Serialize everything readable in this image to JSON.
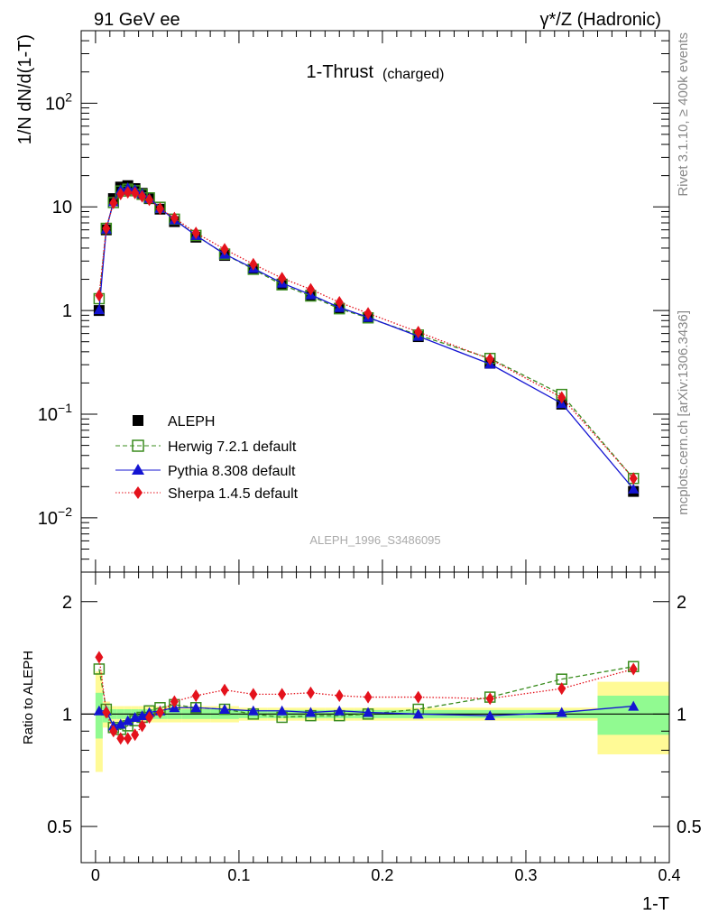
{
  "header": {
    "left_label": "91 GeV ee",
    "right_label": "γ*/Z (Hadronic)"
  },
  "side_labels": {
    "top": "Rivet 3.1.10, ≥ 400k events",
    "bottom": "mcplots.cern.ch [arXiv:1306.3436]"
  },
  "chart_data": [
    {
      "type": "line",
      "title": "1-Thrust",
      "title_suffix": "(charged)",
      "watermark": "ALEPH_1996_S3486095",
      "ylabel": "1/N dN/d(1-T)",
      "yscale": "log",
      "ylim": [
        0.003,
        500
      ],
      "xlim": [
        -0.01,
        0.4
      ],
      "ytick_labels": {
        "1e2": [
          "10",
          "2"
        ],
        "1e1": [
          "10",
          ""
        ],
        "1e0": [
          "1",
          ""
        ],
        "1e-1": [
          "10",
          "−1"
        ],
        "1e-2": [
          "10",
          "−2"
        ]
      },
      "x": [
        0.0025,
        0.0075,
        0.0125,
        0.0175,
        0.0225,
        0.0275,
        0.0325,
        0.0375,
        0.045,
        0.055,
        0.07,
        0.09,
        0.11,
        0.13,
        0.15,
        0.17,
        0.19,
        0.225,
        0.275,
        0.325,
        0.375
      ],
      "legend": [
        "ALEPH",
        "Herwig 7.2.1 default",
        "Pythia 8.308 default",
        "Sherpa 1.4.5 default"
      ],
      "series": [
        {
          "name": "ALEPH",
          "color": "#000000",
          "values": [
            1.0,
            6.0,
            12.0,
            15.5,
            16.0,
            15.0,
            13.5,
            12.0,
            9.5,
            7.2,
            5.1,
            3.4,
            2.5,
            1.8,
            1.4,
            1.05,
            0.85,
            0.56,
            0.31,
            0.125,
            0.018
          ]
        },
        {
          "name": "Herwig 7.2.1 default",
          "color": "#3a8c1e",
          "values": [
            1.3,
            6.2,
            11.0,
            14.2,
            14.8,
            14.3,
            13.2,
            12.2,
            9.9,
            7.6,
            5.3,
            3.5,
            2.5,
            1.77,
            1.38,
            1.04,
            0.85,
            0.58,
            0.345,
            0.155,
            0.024
          ]
        },
        {
          "name": "Pythia 8.308 default",
          "color": "#1414d2",
          "values": [
            1.02,
            6.1,
            11.2,
            14.6,
            15.3,
            14.7,
            13.4,
            12.1,
            9.7,
            7.5,
            5.3,
            3.5,
            2.55,
            1.84,
            1.42,
            1.07,
            0.86,
            0.565,
            0.305,
            0.127,
            0.019
          ]
        },
        {
          "name": "Sherpa 1.4.5 default",
          "color": "#e4121c",
          "values": [
            1.4,
            6.2,
            10.9,
            13.3,
            13.8,
            13.6,
            12.6,
            11.7,
            9.6,
            7.8,
            5.6,
            3.9,
            2.8,
            2.05,
            1.6,
            1.2,
            0.94,
            0.62,
            0.34,
            0.145,
            0.024
          ]
        }
      ]
    },
    {
      "type": "line",
      "ylabel": "Ratio to ALEPH",
      "xlabel": "1-T",
      "yscale": "log",
      "ylim": [
        0.4,
        2.4
      ],
      "xlim": [
        -0.01,
        0.4
      ],
      "yticks": [
        0.5,
        1,
        2
      ],
      "ytick_labels": [
        "0.5",
        "1",
        "2"
      ],
      "xticks": [
        0,
        0.1,
        0.2,
        0.3,
        0.4
      ],
      "xtick_labels": [
        "0",
        "0.1",
        "0.2",
        "0.3",
        "0.4"
      ],
      "x": [
        0.0025,
        0.0075,
        0.0125,
        0.0175,
        0.0225,
        0.0275,
        0.0325,
        0.0375,
        0.045,
        0.055,
        0.07,
        0.09,
        0.11,
        0.13,
        0.15,
        0.17,
        0.19,
        0.225,
        0.275,
        0.325,
        0.375
      ],
      "bin_edges": [
        0,
        0.005,
        0.01,
        0.015,
        0.02,
        0.025,
        0.03,
        0.035,
        0.04,
        0.05,
        0.06,
        0.08,
        0.1,
        0.12,
        0.14,
        0.16,
        0.18,
        0.2,
        0.25,
        0.3,
        0.35,
        0.4
      ],
      "stat_band": [
        0.14,
        0.05,
        0.03,
        0.03,
        0.03,
        0.03,
        0.03,
        0.03,
        0.03,
        0.03,
        0.03,
        0.03,
        0.025,
        0.025,
        0.025,
        0.025,
        0.025,
        0.025,
        0.025,
        0.025,
        0.12
      ],
      "total_band": [
        0.3,
        0.08,
        0.05,
        0.05,
        0.05,
        0.05,
        0.05,
        0.05,
        0.05,
        0.05,
        0.05,
        0.05,
        0.04,
        0.04,
        0.04,
        0.04,
        0.04,
        0.04,
        0.04,
        0.04,
        0.22
      ],
      "band_colors": {
        "stat": "#91fa91",
        "total": "#fffa96"
      },
      "series": [
        {
          "name": "Herwig 7.2.1 default",
          "color": "#3a8c1e",
          "values": [
            1.32,
            1.03,
            0.92,
            0.91,
            0.93,
            0.96,
            0.98,
            1.02,
            1.04,
            1.06,
            1.04,
            1.03,
            1.0,
            0.98,
            0.99,
            0.99,
            1.0,
            1.03,
            1.11,
            1.24,
            1.34
          ]
        },
        {
          "name": "Pythia 8.308 default",
          "color": "#1414d2",
          "values": [
            1.02,
            1.02,
            0.93,
            0.94,
            0.96,
            0.98,
            0.99,
            1.01,
            1.02,
            1.04,
            1.04,
            1.03,
            1.02,
            1.02,
            1.01,
            1.02,
            1.01,
            1.0,
            0.99,
            1.01,
            1.05
          ]
        },
        {
          "name": "Sherpa 1.4.5 default",
          "color": "#e4121c",
          "values": [
            1.42,
            1.01,
            0.9,
            0.86,
            0.86,
            0.88,
            0.93,
            0.98,
            1.01,
            1.08,
            1.12,
            1.16,
            1.13,
            1.13,
            1.14,
            1.12,
            1.11,
            1.11,
            1.1,
            1.17,
            1.32
          ]
        }
      ]
    }
  ]
}
